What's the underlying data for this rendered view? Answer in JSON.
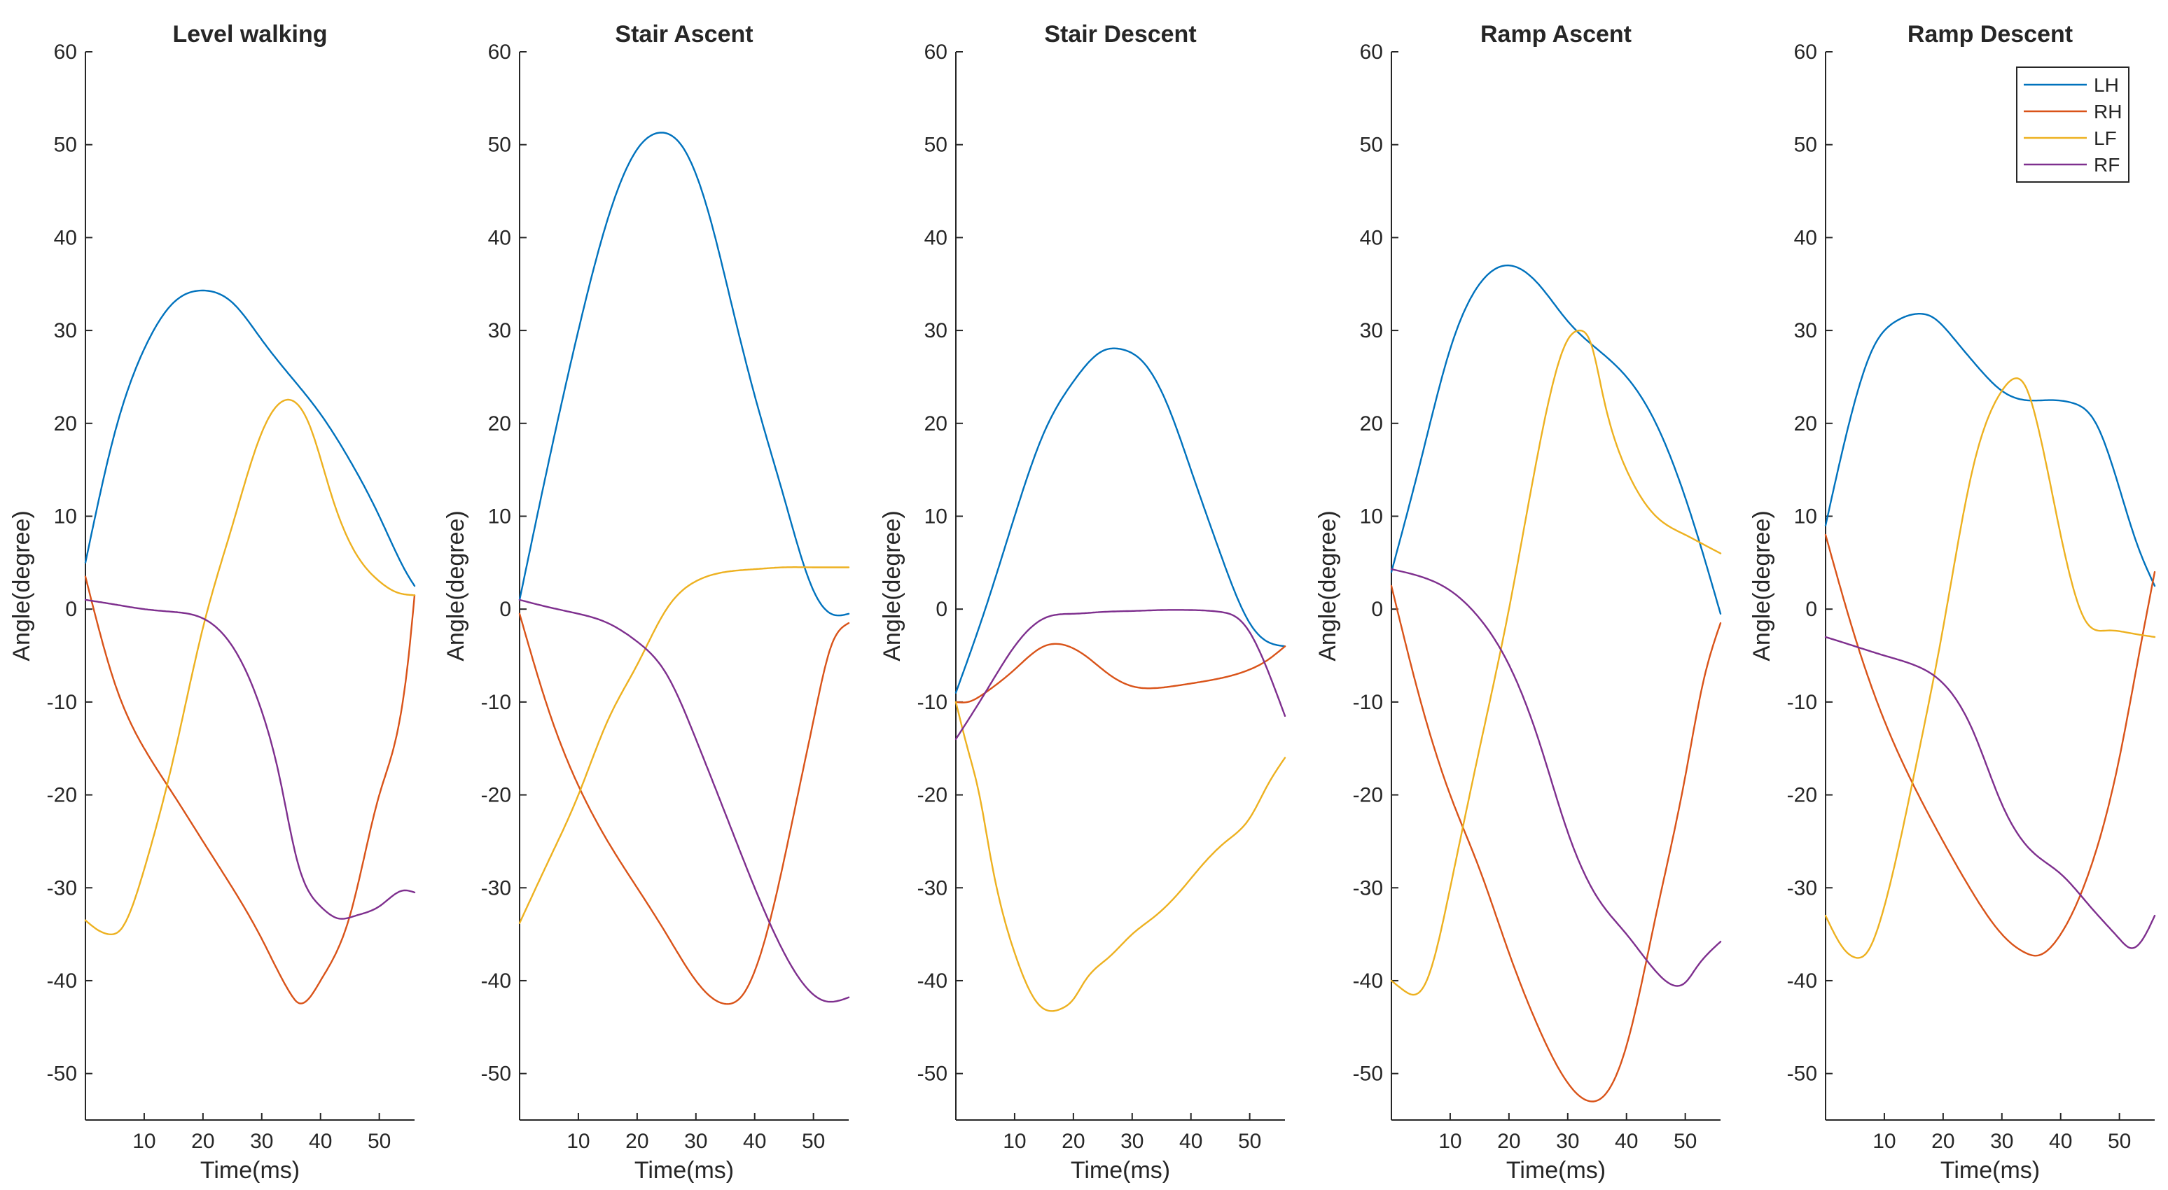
{
  "chart_data": [
    {
      "type": "line",
      "title": "Level walking",
      "xlabel": "Time(ms)",
      "ylabel": "Angle(degree)",
      "xlim": [
        0,
        56
      ],
      "ylim": [
        -55,
        60
      ],
      "xticks": [
        10,
        20,
        30,
        40,
        50
      ],
      "yticks": [
        -50,
        -40,
        -30,
        -20,
        -10,
        0,
        10,
        20,
        30,
        40,
        50,
        60
      ],
      "legend": null,
      "series": [
        {
          "name": "LH",
          "x": [
            0,
            5,
            10,
            15,
            20,
            25,
            30,
            35,
            40,
            45,
            50,
            55,
            56
          ],
          "y": [
            5,
            19,
            28,
            33,
            34.3,
            33,
            29,
            25,
            21,
            16,
            10,
            3.5,
            2.5
          ]
        },
        {
          "name": "RH",
          "x": [
            0,
            5,
            10,
            15,
            20,
            25,
            30,
            35,
            36,
            40,
            45,
            50,
            55,
            56
          ],
          "y": [
            3.5,
            -8,
            -15,
            -20,
            -25,
            -30,
            -35.5,
            -41.5,
            -42.3,
            -40,
            -33,
            -20,
            -5,
            1.5
          ]
        },
        {
          "name": "LF",
          "x": [
            0,
            2,
            4,
            6,
            10,
            15,
            20,
            25,
            30,
            34,
            38,
            42,
            46,
            50,
            53,
            56
          ],
          "y": [
            -33.5,
            -34.5,
            -35,
            -34.5,
            -28,
            -16,
            -2,
            9,
            19,
            22.5,
            20,
            12,
            6,
            3,
            1.8,
            1.5
          ]
        },
        {
          "name": "RF",
          "x": [
            0,
            5,
            10,
            15,
            20,
            25,
            30,
            33,
            36,
            40,
            43,
            46,
            50,
            52,
            54,
            56
          ],
          "y": [
            1,
            0.5,
            0,
            -0.3,
            -1,
            -4,
            -11,
            -18,
            -27,
            -32,
            -33.3,
            -33,
            -32,
            -31,
            -30.3,
            -30.5
          ]
        }
      ]
    },
    {
      "type": "line",
      "title": "Stair Ascent",
      "xlabel": "Time(ms)",
      "ylabel": "Angle(degree)",
      "xlim": [
        0,
        56
      ],
      "ylim": [
        -55,
        60
      ],
      "xticks": [
        10,
        20,
        30,
        40,
        50
      ],
      "yticks": [
        -50,
        -40,
        -30,
        -20,
        -10,
        0,
        10,
        20,
        30,
        40,
        50,
        60
      ],
      "legend": null,
      "series": [
        {
          "name": "LH",
          "x": [
            0,
            5,
            10,
            15,
            20,
            24,
            28,
            32,
            36,
            40,
            45,
            50,
            53,
            56
          ],
          "y": [
            1,
            16,
            30,
            42,
            49.5,
            51.3,
            49.5,
            43,
            33,
            23,
            12,
            2,
            -0.5,
            -0.5
          ]
        },
        {
          "name": "RH",
          "x": [
            0,
            5,
            10,
            15,
            20,
            25,
            30,
            35,
            38,
            42,
            45,
            48,
            50,
            53,
            56
          ],
          "y": [
            -0.5,
            -11,
            -19,
            -25,
            -30,
            -35,
            -40,
            -42.5,
            -41.5,
            -35,
            -27,
            -18,
            -12,
            -4,
            -1.5
          ]
        },
        {
          "name": "LF",
          "x": [
            0,
            5,
            10,
            15,
            20,
            25,
            30,
            35,
            40,
            45,
            50,
            53,
            56
          ],
          "y": [
            -33.8,
            -27,
            -20,
            -12,
            -6,
            0,
            3,
            4,
            4.3,
            4.5,
            4.5,
            4.5,
            4.5
          ]
        },
        {
          "name": "RF",
          "x": [
            0,
            5,
            10,
            15,
            20,
            25,
            30,
            35,
            40,
            45,
            50,
            52,
            54,
            56
          ],
          "y": [
            1,
            0.2,
            -0.5,
            -1.5,
            -3.5,
            -7,
            -14,
            -22,
            -30,
            -37,
            -41.5,
            -42.2,
            -42.2,
            -41.8
          ]
        }
      ]
    },
    {
      "type": "line",
      "title": "Stair Descent",
      "xlabel": "Time(ms)",
      "ylabel": "Angle(degree)",
      "xlim": [
        0,
        56
      ],
      "ylim": [
        -55,
        60
      ],
      "xticks": [
        10,
        20,
        30,
        40,
        50
      ],
      "yticks": [
        -50,
        -40,
        -30,
        -20,
        -10,
        0,
        10,
        20,
        30,
        40,
        50,
        60
      ],
      "legend": null,
      "series": [
        {
          "name": "LH",
          "x": [
            0,
            5,
            10,
            15,
            20,
            25,
            28,
            32,
            36,
            40,
            45,
            50,
            53,
            56
          ],
          "y": [
            -9,
            0,
            10,
            19,
            24.5,
            27.8,
            28,
            26.5,
            22,
            15,
            6,
            -1.5,
            -3.5,
            -4
          ]
        },
        {
          "name": "RH",
          "x": [
            0,
            2,
            5,
            10,
            15,
            18,
            22,
            26,
            30,
            34,
            38,
            42,
            46,
            50,
            53,
            56
          ],
          "y": [
            -10,
            -10,
            -9,
            -6.5,
            -4,
            -3.8,
            -5,
            -7,
            -8.3,
            -8.5,
            -8.2,
            -7.8,
            -7.3,
            -6.5,
            -5.5,
            -4
          ]
        },
        {
          "name": "LF",
          "x": [
            0,
            2,
            4,
            6,
            10,
            14,
            18,
            20,
            22,
            26,
            30,
            34,
            38,
            42,
            46,
            50,
            53,
            56
          ],
          "y": [
            -10,
            -15,
            -20,
            -27,
            -37,
            -42.5,
            -43,
            -42,
            -40,
            -37.5,
            -35,
            -33,
            -30.5,
            -27.5,
            -25,
            -22.5,
            -19,
            -16
          ]
        },
        {
          "name": "RF",
          "x": [
            0,
            5,
            10,
            15,
            20,
            25,
            30,
            35,
            40,
            45,
            48,
            50,
            53,
            56
          ],
          "y": [
            -14,
            -9,
            -4,
            -1,
            -0.5,
            -0.3,
            -0.2,
            -0.1,
            -0.1,
            -0.3,
            -1,
            -2.5,
            -6.5,
            -11.5
          ]
        }
      ]
    },
    {
      "type": "line",
      "title": "Ramp Ascent",
      "xlabel": "Time(ms)",
      "ylabel": "Angle(degree)",
      "xlim": [
        0,
        56
      ],
      "ylim": [
        -55,
        60
      ],
      "xticks": [
        10,
        20,
        30,
        40,
        50
      ],
      "yticks": [
        -50,
        -40,
        -30,
        -20,
        -10,
        0,
        10,
        20,
        30,
        40,
        50,
        60
      ],
      "legend": null,
      "series": [
        {
          "name": "LH",
          "x": [
            0,
            5,
            10,
            15,
            20,
            25,
            30,
            35,
            40,
            45,
            50,
            53,
            56
          ],
          "y": [
            4,
            16,
            28,
            35,
            37,
            35,
            31,
            28,
            25,
            20,
            12,
            6,
            -0.5
          ]
        },
        {
          "name": "RH",
          "x": [
            0,
            5,
            10,
            15,
            20,
            25,
            30,
            34,
            36,
            40,
            45,
            50,
            53,
            56
          ],
          "y": [
            2.5,
            -10,
            -20,
            -28,
            -37,
            -45,
            -51,
            -53,
            -52.5,
            -47,
            -33,
            -18,
            -8,
            -1.5
          ]
        },
        {
          "name": "LF",
          "x": [
            0,
            2,
            4,
            6,
            10,
            15,
            20,
            25,
            30,
            32,
            34,
            36,
            40,
            45,
            50,
            53,
            56
          ],
          "y": [
            -40,
            -41,
            -41.5,
            -40,
            -30,
            -15,
            0,
            17,
            29,
            30,
            28.5,
            23,
            15,
            10,
            8,
            7,
            6
          ]
        },
        {
          "name": "RF",
          "x": [
            0,
            5,
            10,
            15,
            20,
            25,
            30,
            35,
            40,
            45,
            48,
            50,
            52,
            54,
            56
          ],
          "y": [
            4.3,
            3.5,
            2,
            -1,
            -6,
            -14,
            -24,
            -31,
            -35,
            -39,
            -40.5,
            -40.2,
            -38.5,
            -37,
            -35.8
          ]
        }
      ]
    },
    {
      "type": "line",
      "title": "Ramp Descent",
      "xlabel": "Time(ms)",
      "ylabel": "Angle(degree)",
      "xlim": [
        0,
        56
      ],
      "ylim": [
        -55,
        60
      ],
      "xticks": [
        10,
        20,
        30,
        40,
        50
      ],
      "yticks": [
        -50,
        -40,
        -30,
        -20,
        -10,
        0,
        10,
        20,
        30,
        40,
        50,
        60
      ],
      "legend": {
        "location": "top-right",
        "entries": [
          "LH",
          "RH",
          "LF",
          "RF"
        ]
      },
      "series": [
        {
          "name": "LH",
          "x": [
            0,
            4,
            8,
            12,
            16,
            18,
            22,
            26,
            30,
            34,
            38,
            42,
            46,
            50,
            53,
            56
          ],
          "y": [
            9,
            20,
            28,
            31,
            31.8,
            31.5,
            29,
            26,
            23.5,
            22.5,
            22.5,
            22.2,
            20,
            13,
            7,
            2.5
          ]
        },
        {
          "name": "RH",
          "x": [
            0,
            5,
            10,
            15,
            20,
            25,
            30,
            34,
            36,
            40,
            45,
            50,
            53,
            56
          ],
          "y": [
            8,
            -3,
            -12,
            -19,
            -25,
            -30.5,
            -35,
            -37,
            -37.3,
            -35,
            -28,
            -16,
            -6,
            4
          ]
        },
        {
          "name": "LF",
          "x": [
            0,
            3,
            5,
            7,
            10,
            15,
            20,
            25,
            30,
            32,
            34,
            36,
            40,
            44,
            48,
            52,
            56
          ],
          "y": [
            -33,
            -36.5,
            -37.5,
            -37,
            -32,
            -18,
            -2,
            15,
            23.5,
            24.8,
            24,
            20,
            8,
            -1,
            -2.3,
            -2.6,
            -3
          ]
        },
        {
          "name": "RF",
          "x": [
            0,
            5,
            10,
            15,
            20,
            25,
            30,
            35,
            40,
            45,
            50,
            52,
            54,
            56
          ],
          "y": [
            -3,
            -4,
            -5,
            -6,
            -8,
            -13,
            -21,
            -26,
            -28.5,
            -32,
            -35.5,
            -36.5,
            -35.5,
            -33
          ]
        }
      ]
    }
  ],
  "colors": {
    "LH": "#0072BD",
    "RH": "#D95319",
    "LF": "#EDB120",
    "RF": "#7E2F8E"
  }
}
